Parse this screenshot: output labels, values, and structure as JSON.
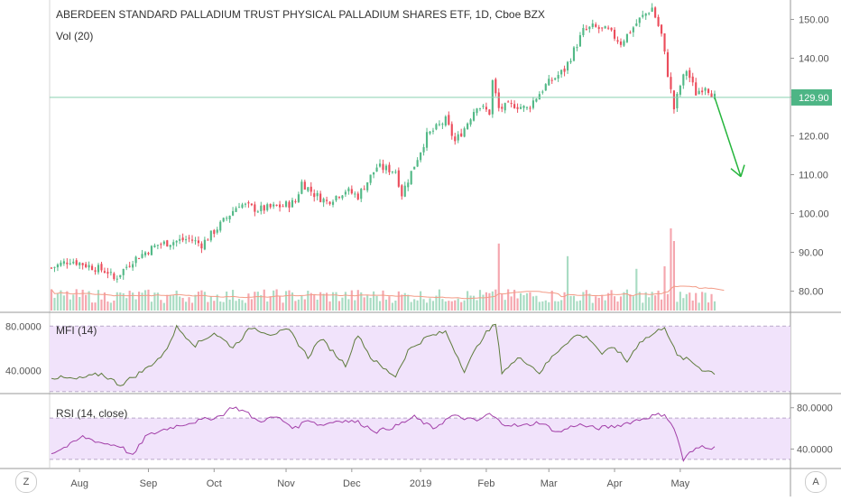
{
  "header": {
    "title": "ABERDEEN STANDARD PALLADIUM TRUST PHYSICAL PALLADIUM SHARES ETF, 1D, Cboe BZX",
    "vol_label": "Vol (20)",
    "mfi_label": "MFI (14)",
    "rsi_label": "RSI (14, close)"
  },
  "corner_buttons": {
    "left": "Z",
    "right": "A"
  },
  "colors": {
    "up": "#53b987",
    "down": "#eb4d5c",
    "up_vol": "#a9dcc3",
    "down_vol": "#f5a6ae",
    "vol_ma": "#f39c87",
    "price_line": "#8ad1b0",
    "last_price_bg": "#4db585",
    "mfi_line": "#5e7b3c",
    "rsi_line": "#a23fa8",
    "band_fill": "#f1e3fb",
    "arrow": "#25b53c"
  },
  "chart_data": [
    {
      "type": "candlestick",
      "name": "price",
      "ylim": [
        75,
        155
      ],
      "y_ticks": [
        "150.00",
        "140.00",
        "130.00",
        "120.00",
        "110.00",
        "100.00",
        "90.00",
        "80.00"
      ],
      "y_tick_values": [
        150,
        140,
        130,
        120,
        110,
        100,
        90,
        80
      ],
      "x_labels": [
        "Aug",
        "Sep",
        "Oct",
        "Nov",
        "Dec",
        "2019",
        "Feb",
        "Mar",
        "Apr",
        "May"
      ],
      "last_price": "129.90",
      "last_price_value": 129.9,
      "annotation": "green arrow projecting decline from ~130 toward ~110",
      "anchors": [
        [
          0,
          86
        ],
        [
          6,
          88
        ],
        [
          14,
          86
        ],
        [
          18,
          85
        ],
        [
          20,
          83
        ],
        [
          26,
          88
        ],
        [
          34,
          92
        ],
        [
          44,
          93.5
        ],
        [
          48,
          92
        ],
        [
          55,
          98
        ],
        [
          60,
          102.5
        ],
        [
          66,
          101
        ],
        [
          74,
          102
        ],
        [
          78,
          103
        ],
        [
          80,
          108
        ],
        [
          84,
          105
        ],
        [
          88,
          103
        ],
        [
          94,
          106
        ],
        [
          98,
          104.5
        ],
        [
          104,
          112
        ],
        [
          110,
          111
        ],
        [
          112,
          105
        ],
        [
          120,
          120
        ],
        [
          126,
          124
        ],
        [
          129,
          118.5
        ],
        [
          132,
          122
        ],
        [
          136,
          128
        ],
        [
          140,
          126
        ],
        [
          141,
          134
        ],
        [
          143,
          127
        ],
        [
          148,
          128
        ],
        [
          152,
          127
        ],
        [
          158,
          133
        ],
        [
          164,
          137
        ],
        [
          170,
          147
        ],
        [
          173,
          148
        ],
        [
          178,
          147
        ],
        [
          182,
          144
        ],
        [
          188,
          150
        ],
        [
          192,
          153
        ],
        [
          195,
          146
        ],
        [
          197,
          136
        ],
        [
          199,
          127
        ],
        [
          201,
          133
        ],
        [
          203,
          137
        ],
        [
          206,
          131
        ],
        [
          209,
          133
        ],
        [
          212,
          130
        ]
      ]
    },
    {
      "type": "bar",
      "name": "Vol (20)",
      "annotation": "volume bars with 20-period moving average",
      "spikes": [
        [
          36,
          0.6
        ],
        [
          143,
          5.3
        ],
        [
          165,
          4.3
        ],
        [
          187,
          3.3
        ],
        [
          196,
          3.5
        ],
        [
          198,
          6.5
        ],
        [
          199,
          5.5
        ]
      ]
    },
    {
      "type": "line",
      "name": "MFI (14)",
      "ylim": [
        20,
        90
      ],
      "y_ticks": [
        "80.0000",
        "40.0000"
      ],
      "y_tick_values": [
        80,
        40
      ],
      "band": [
        21,
        80
      ],
      "anchors": [
        [
          0,
          34
        ],
        [
          8,
          32
        ],
        [
          16,
          37
        ],
        [
          22,
          27
        ],
        [
          30,
          41
        ],
        [
          36,
          55
        ],
        [
          40,
          79
        ],
        [
          46,
          63
        ],
        [
          52,
          74
        ],
        [
          58,
          61
        ],
        [
          64,
          79
        ],
        [
          70,
          73
        ],
        [
          76,
          76
        ],
        [
          82,
          52
        ],
        [
          86,
          69
        ],
        [
          94,
          45
        ],
        [
          98,
          73
        ],
        [
          102,
          52
        ],
        [
          106,
          42
        ],
        [
          110,
          35
        ],
        [
          114,
          58
        ],
        [
          120,
          70
        ],
        [
          126,
          75
        ],
        [
          132,
          40
        ],
        [
          138,
          71
        ],
        [
          142,
          82
        ],
        [
          144,
          39
        ],
        [
          150,
          52
        ],
        [
          156,
          38
        ],
        [
          160,
          52
        ],
        [
          164,
          64
        ],
        [
          168,
          72
        ],
        [
          172,
          69
        ],
        [
          176,
          55
        ],
        [
          180,
          61
        ],
        [
          184,
          48
        ],
        [
          188,
          66
        ],
        [
          192,
          72
        ],
        [
          196,
          80
        ],
        [
          200,
          53
        ],
        [
          204,
          49
        ],
        [
          208,
          41
        ],
        [
          212,
          38
        ]
      ]
    },
    {
      "type": "line",
      "name": "RSI (14, close)",
      "ylim": [
        22,
        92
      ],
      "y_ticks": [
        "80.0000",
        "40.0000"
      ],
      "y_tick_values": [
        80,
        40
      ],
      "band": [
        30,
        70
      ],
      "anchors": [
        [
          0,
          36
        ],
        [
          6,
          44
        ],
        [
          10,
          52
        ],
        [
          16,
          46
        ],
        [
          22,
          43
        ],
        [
          26,
          33
        ],
        [
          30,
          52
        ],
        [
          36,
          59
        ],
        [
          42,
          64
        ],
        [
          48,
          68
        ],
        [
          54,
          72
        ],
        [
          58,
          81
        ],
        [
          62,
          76
        ],
        [
          66,
          67
        ],
        [
          72,
          71
        ],
        [
          78,
          60
        ],
        [
          82,
          69
        ],
        [
          86,
          63
        ],
        [
          92,
          68
        ],
        [
          98,
          66
        ],
        [
          104,
          57
        ],
        [
          110,
          62
        ],
        [
          116,
          71
        ],
        [
          122,
          60
        ],
        [
          128,
          72
        ],
        [
          132,
          70
        ],
        [
          136,
          67
        ],
        [
          140,
          74
        ],
        [
          144,
          65
        ],
        [
          150,
          62
        ],
        [
          156,
          66
        ],
        [
          162,
          56
        ],
        [
          168,
          64
        ],
        [
          174,
          60
        ],
        [
          180,
          62
        ],
        [
          186,
          67
        ],
        [
          192,
          72
        ],
        [
          196,
          74
        ],
        [
          198,
          65
        ],
        [
          200,
          52
        ],
        [
          202,
          29
        ],
        [
          204,
          36
        ],
        [
          208,
          43
        ],
        [
          212,
          41
        ]
      ]
    }
  ]
}
